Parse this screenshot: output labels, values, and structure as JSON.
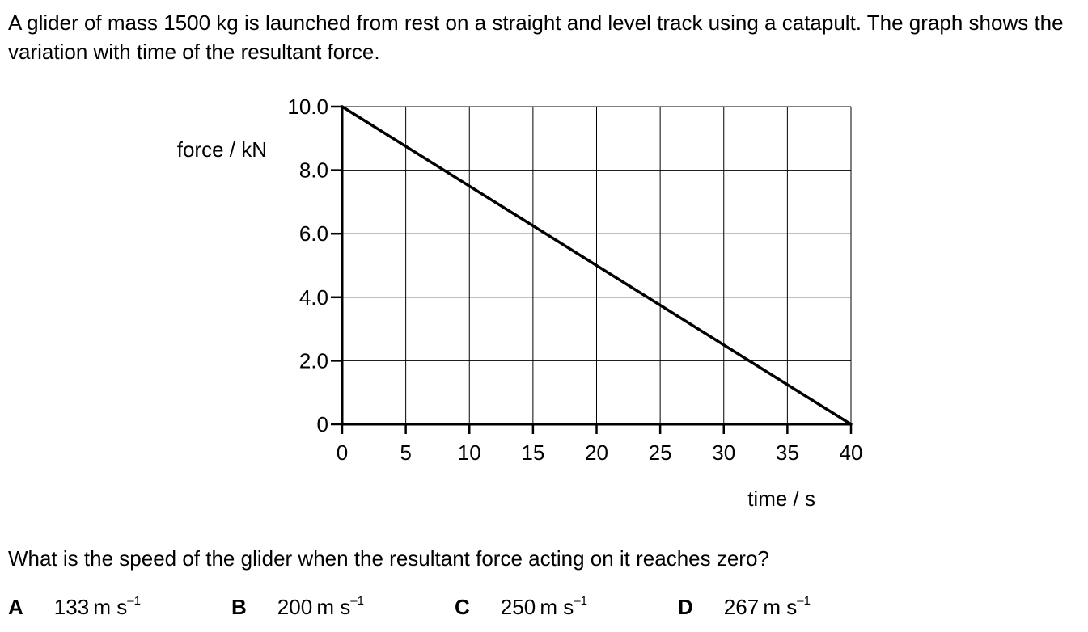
{
  "question": {
    "intro": "A glider of mass 1500 kg is launched from rest on a straight and level track using a catapult. The graph shows the variation with time of the resultant force.",
    "prompt": "What is the speed of the glider when the resultant force acting on it reaches zero?"
  },
  "options": [
    {
      "letter": "A",
      "value": "133",
      "unit": "m s",
      "exponent": "–1"
    },
    {
      "letter": "B",
      "value": "200",
      "unit": "m s",
      "exponent": "–1"
    },
    {
      "letter": "C",
      "value": "250",
      "unit": "m s",
      "exponent": "–1"
    },
    {
      "letter": "D",
      "value": "267",
      "unit": "m s",
      "exponent": "–1"
    }
  ],
  "chart_data": {
    "type": "line",
    "title": "",
    "xlabel": "time / s",
    "ylabel": "force / kN",
    "xlim": [
      0,
      40
    ],
    "ylim": [
      0,
      10
    ],
    "x_ticks": [
      0,
      5,
      10,
      15,
      20,
      25,
      30,
      35,
      40
    ],
    "x_tick_labels": [
      "0",
      "5",
      "10",
      "15",
      "20",
      "25",
      "30",
      "35",
      "40"
    ],
    "y_ticks": [
      0,
      2,
      4,
      6,
      8,
      10
    ],
    "y_tick_labels": [
      "0",
      "2.0",
      "4.0",
      "6.0",
      "8.0",
      "10.0"
    ],
    "grid": true,
    "series": [
      {
        "x": [
          0,
          40
        ],
        "y": [
          10.0,
          0
        ],
        "color": "#000000"
      }
    ]
  }
}
